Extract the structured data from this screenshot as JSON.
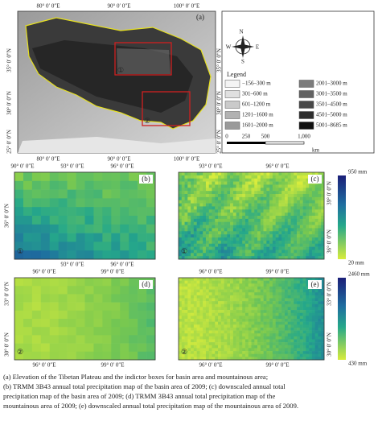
{
  "panel_a": {
    "label": "(a)",
    "top_ticks": [
      "80° 0′ 0″E",
      "90° 0′ 0″E",
      "100° 0′ 0″E"
    ],
    "bottom_ticks": [
      "80° 0′ 0″E",
      "90° 0′ 0″E",
      "100° 0′ 0″E"
    ],
    "left_ticks": [
      "35° 0′ 0″N",
      "30° 0′ 0″N",
      "25° 0′ 0″N"
    ],
    "right_ticks": [
      "35° 0′ 0″N",
      "30° 0′ 0″N",
      "25° 0′ 0″N"
    ],
    "boxes": [
      "①",
      "②"
    ]
  },
  "legend": {
    "title": "Legend",
    "compass": [
      "N",
      "W",
      "E",
      "S"
    ],
    "classes": [
      "−156–300 m",
      "301–600 m",
      "601–1200 m",
      "1201–1600 m",
      "1601–2000 m",
      "2001–3000 m",
      "3001–3500 m",
      "3501–4500 m",
      "4501–5000 m",
      "5001–8685 m"
    ],
    "scale": [
      "0",
      "250",
      "500",
      "1,000"
    ],
    "scale_unit": "km"
  },
  "panel_b": {
    "label": "(b)",
    "box": "①",
    "top_ticks": [
      "90° 0′ 0″E",
      "93° 0′ 0″E",
      "96° 0′ 0″E"
    ],
    "left_ticks": [
      "36° 0′ 0″N"
    ],
    "bottom_ticks": [
      "93° 0′ 0″E",
      "96° 0′ 0″E"
    ]
  },
  "panel_c": {
    "label": "(c)",
    "box": "①",
    "top_ticks": [
      "93° 0′ 0″E",
      "96° 0′ 0″E"
    ],
    "right_ticks": [
      "39° 0′ 0″N",
      "36° 0′ 0″N"
    ],
    "colorbar": [
      "950 mm",
      "20 mm"
    ]
  },
  "panel_d": {
    "label": "(d)",
    "box": "②",
    "top_ticks": [
      "96° 0′ 0″E",
      "99° 0′ 0″E"
    ],
    "left_ticks": [
      "33° 0′ 0″N",
      "30° 0′ 0″N"
    ],
    "bottom_ticks": [
      "96° 0′ 0″E",
      "99° 0′ 0″E"
    ]
  },
  "panel_e": {
    "label": "(e)",
    "box": "②",
    "top_ticks": [
      "96° 0′ 0″E",
      "99° 0′ 0″E"
    ],
    "right_ticks": [
      "33° 0′ 0″N",
      "30° 0′ 0″N"
    ],
    "bottom_ticks": [
      "96° 0′ 0″E",
      "99° 0′ 0″E"
    ],
    "colorbar": [
      "2460 mm",
      "430 mm"
    ]
  },
  "caption": [
    "(a) Elevation of the Tibetan Plateau and the indictor boxes for basin area and mountainous area;",
    "(b) TRMM 3B43 annual total precipitation map of the basin area of 2009; (c) downscaled annual total",
    "precipitation map of the basin area of 2009; (d) TRMM 3B43 annual total precipitation map of the",
    "mountainous area of 2009; (e) downscaled annual total precipitation map of the mountainous area of 2009."
  ]
}
